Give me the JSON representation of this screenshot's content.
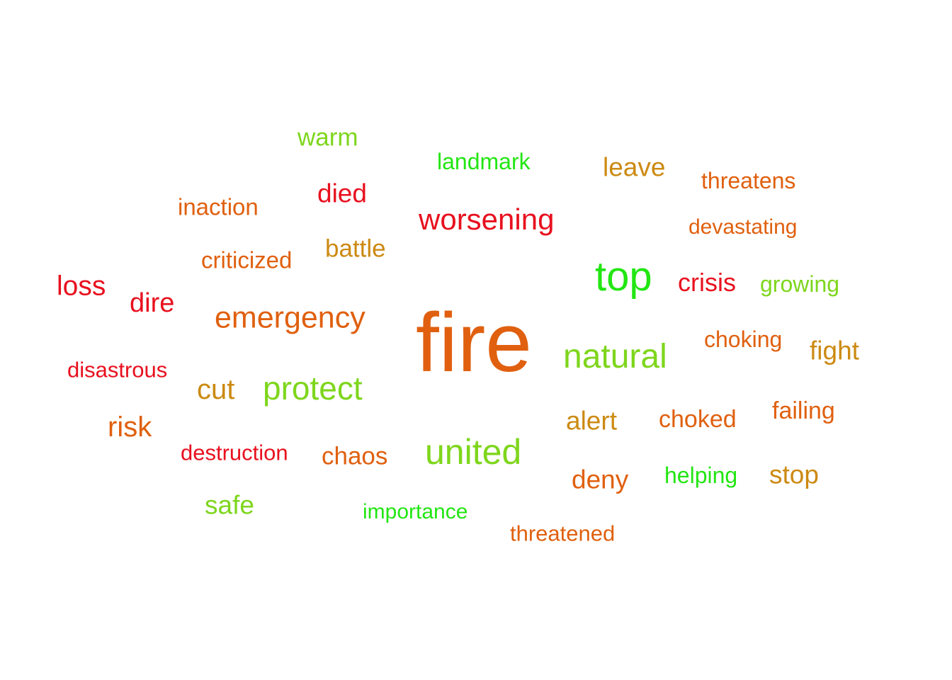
{
  "palette": {
    "red": "#e8101e",
    "orange": "#e0600f",
    "amber": "#cc8a12",
    "lime": "#7ed61c",
    "green": "#22e612"
  },
  "words": [
    {
      "text": "fire",
      "color": "#e0600f"
    },
    {
      "text": "top",
      "color": "#22e612"
    },
    {
      "text": "natural",
      "color": "#7ed61c"
    },
    {
      "text": "united",
      "color": "#7ed61c"
    },
    {
      "text": "protect",
      "color": "#7ed61c"
    },
    {
      "text": "emergency",
      "color": "#e0600f"
    },
    {
      "text": "worsening",
      "color": "#e8101e"
    },
    {
      "text": "loss",
      "color": "#e8101e"
    },
    {
      "text": "dire",
      "color": "#e8101e"
    },
    {
      "text": "risk",
      "color": "#e0600f"
    },
    {
      "text": "cut",
      "color": "#cc8a12"
    },
    {
      "text": "alert",
      "color": "#cc8a12"
    },
    {
      "text": "died",
      "color": "#e8101e"
    },
    {
      "text": "warm",
      "color": "#7ed61c"
    },
    {
      "text": "leave",
      "color": "#cc8a12"
    },
    {
      "text": "fight",
      "color": "#cc8a12"
    },
    {
      "text": "deny",
      "color": "#e0600f"
    },
    {
      "text": "safe",
      "color": "#7ed61c"
    },
    {
      "text": "stop",
      "color": "#cc8a12"
    },
    {
      "text": "crisis",
      "color": "#e8101e"
    },
    {
      "text": "battle",
      "color": "#cc8a12"
    },
    {
      "text": "chaos",
      "color": "#e0600f"
    },
    {
      "text": "choked",
      "color": "#e0600f"
    },
    {
      "text": "failing",
      "color": "#e0600f"
    },
    {
      "text": "inaction",
      "color": "#e0600f"
    },
    {
      "text": "criticized",
      "color": "#e0600f"
    },
    {
      "text": "landmark",
      "color": "#22e612"
    },
    {
      "text": "threatens",
      "color": "#e0600f"
    },
    {
      "text": "devastating",
      "color": "#e0600f"
    },
    {
      "text": "growing",
      "color": "#7ed61c"
    },
    {
      "text": "choking",
      "color": "#e0600f"
    },
    {
      "text": "disastrous",
      "color": "#e8101e"
    },
    {
      "text": "destruction",
      "color": "#e8101e"
    },
    {
      "text": "helping",
      "color": "#22e612"
    },
    {
      "text": "importance",
      "color": "#22e612"
    },
    {
      "text": "threatened",
      "color": "#e0600f"
    }
  ]
}
